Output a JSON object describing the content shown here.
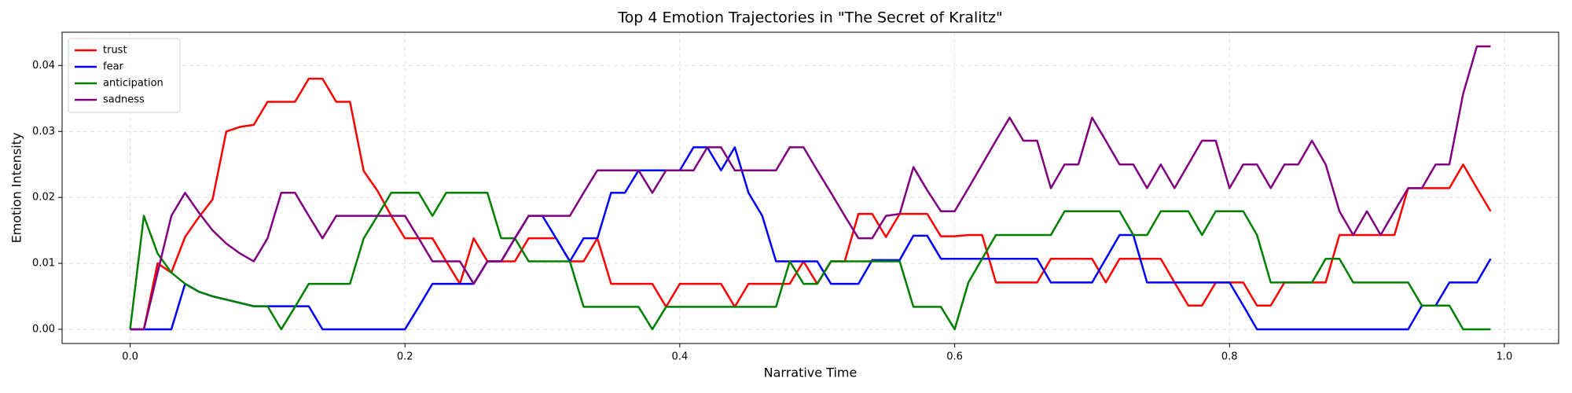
{
  "chart_data": {
    "type": "line",
    "title": "Top 4 Emotion Trajectories in \"The Secret of Kralitz\"",
    "xlabel": "Narrative Time",
    "ylabel": "Emotion Intensity",
    "x": [
      0,
      0.01,
      0.02,
      0.03,
      0.04,
      0.05,
      0.06,
      0.07,
      0.08,
      0.09,
      0.1,
      0.11,
      0.12,
      0.13,
      0.14,
      0.15,
      0.16,
      0.17,
      0.18,
      0.19,
      0.2,
      0.21,
      0.22,
      0.23,
      0.24,
      0.25,
      0.26,
      0.27,
      0.28,
      0.29,
      0.3,
      0.31,
      0.32,
      0.33,
      0.34,
      0.35,
      0.36,
      0.37,
      0.38,
      0.39,
      0.4,
      0.41,
      0.42,
      0.43,
      0.44,
      0.45,
      0.46,
      0.47,
      0.48,
      0.49,
      0.5,
      0.51,
      0.52,
      0.53,
      0.54,
      0.55,
      0.56,
      0.57,
      0.58,
      0.59,
      0.6,
      0.61,
      0.62,
      0.63,
      0.64,
      0.65,
      0.66,
      0.67,
      0.68,
      0.69,
      0.7,
      0.71,
      0.72,
      0.73,
      0.74,
      0.75,
      0.76,
      0.77,
      0.78,
      0.79,
      0.8,
      0.81,
      0.82,
      0.83,
      0.84,
      0.85,
      0.86,
      0.87,
      0.88,
      0.89,
      0.9,
      0.91,
      0.92,
      0.93,
      0.94,
      0.95,
      0.96,
      0.97,
      0.98,
      0.99
    ],
    "series": [
      {
        "name": "trust",
        "color": "#ff0000",
        "values": [
          0,
          0,
          0.01,
          0.0086,
          0.014,
          0.017,
          0.0197,
          0.03,
          0.0307,
          0.031,
          0.0345,
          0.0345,
          0.0345,
          0.038,
          0.038,
          0.0345,
          0.0345,
          0.024,
          0.021,
          0.0172,
          0.0138,
          0.0138,
          0.0138,
          0.0103,
          0.0069,
          0.0138,
          0.0103,
          0.0103,
          0.0103,
          0.0138,
          0.0138,
          0.0138,
          0.0103,
          0.0103,
          0.0138,
          0.0069,
          0.0069,
          0.0069,
          0.0069,
          0.0034,
          0.0069,
          0.0069,
          0.0069,
          0.0069,
          0.0034,
          0.0069,
          0.0069,
          0.0069,
          0.0069,
          0.0103,
          0.0069,
          0.0103,
          0.0103,
          0.0175,
          0.0175,
          0.014,
          0.0175,
          0.0175,
          0.0175,
          0.0141,
          0.0141,
          0.0143,
          0.0143,
          0.0071,
          0.0071,
          0.0071,
          0.0071,
          0.0107,
          0.0107,
          0.0107,
          0.0107,
          0.0071,
          0.0107,
          0.0107,
          0.0107,
          0.0107,
          0.0071,
          0.0036,
          0.0036,
          0.0071,
          0.0071,
          0.0071,
          0.0036,
          0.0036,
          0.0071,
          0.0071,
          0.0071,
          0.0071,
          0.0143,
          0.0143,
          0.0143,
          0.0143,
          0.0143,
          0.0214,
          0.0214,
          0.0214,
          0.0214,
          0.025,
          0.0214,
          0.0179
        ]
      },
      {
        "name": "fear",
        "color": "#0000ff",
        "values": [
          0,
          0,
          0,
          0,
          0.0069,
          0.0057,
          0.005,
          0.0045,
          0.004,
          0.0035,
          0.0035,
          0.0035,
          0.0035,
          0.0035,
          0,
          0,
          0,
          0,
          0,
          0,
          0,
          0.0034,
          0.0069,
          0.0069,
          0.0069,
          0.0069,
          0.0103,
          0.0103,
          0.0138,
          0.0172,
          0.0172,
          0.0138,
          0.0103,
          0.0138,
          0.0138,
          0.0207,
          0.0207,
          0.0241,
          0.0241,
          0.0241,
          0.0241,
          0.0276,
          0.0276,
          0.0241,
          0.0276,
          0.0207,
          0.0172,
          0.0103,
          0.0103,
          0.0103,
          0.0103,
          0.0069,
          0.0069,
          0.0069,
          0.0105,
          0.0105,
          0.0105,
          0.0142,
          0.0142,
          0.0107,
          0.0107,
          0.0107,
          0.0107,
          0.0107,
          0.0107,
          0.0107,
          0.0107,
          0.0071,
          0.0071,
          0.0071,
          0.0071,
          0.0107,
          0.0143,
          0.0143,
          0.0071,
          0.0071,
          0.0071,
          0.0071,
          0.0071,
          0.0071,
          0.0071,
          0.0036,
          0,
          0,
          0,
          0,
          0,
          0,
          0,
          0,
          0,
          0,
          0,
          0,
          0.0036,
          0.0036,
          0.0071,
          0.0071,
          0.0071,
          0.0107
        ]
      },
      {
        "name": "anticipation",
        "color": "#008000",
        "values": [
          0,
          0.0172,
          0.0115,
          0.0086,
          0.0069,
          0.0057,
          0.005,
          0.0045,
          0.004,
          0.0035,
          0.0035,
          0,
          0.0034,
          0.0069,
          0.0069,
          0.0069,
          0.0069,
          0.0138,
          0.0172,
          0.0207,
          0.0207,
          0.0207,
          0.0172,
          0.0207,
          0.0207,
          0.0207,
          0.0207,
          0.0138,
          0.0138,
          0.0103,
          0.0103,
          0.0103,
          0.0103,
          0.0034,
          0.0034,
          0.0034,
          0.0034,
          0.0034,
          0,
          0.0034,
          0.0034,
          0.0034,
          0.0034,
          0.0034,
          0.0034,
          0.0034,
          0.0034,
          0.0034,
          0.0103,
          0.0069,
          0.0069,
          0.0103,
          0.0103,
          0.0103,
          0.0103,
          0.0103,
          0.0103,
          0.0034,
          0.0034,
          0.0034,
          0,
          0.0071,
          0.0107,
          0.0143,
          0.0143,
          0.0143,
          0.0143,
          0.0143,
          0.0179,
          0.0179,
          0.0179,
          0.0179,
          0.0179,
          0.0143,
          0.0143,
          0.0179,
          0.0179,
          0.0179,
          0.0143,
          0.0179,
          0.0179,
          0.0179,
          0.0143,
          0.0071,
          0.0071,
          0.0071,
          0.0071,
          0.0107,
          0.0107,
          0.0071,
          0.0071,
          0.0071,
          0.0071,
          0.0071,
          0.0036,
          0.0036,
          0.0036,
          0,
          0,
          0
        ]
      },
      {
        "name": "sadness",
        "color": "#800080",
        "values": [
          0,
          0,
          0.0086,
          0.0172,
          0.0207,
          0.0177,
          0.015,
          0.013,
          0.0115,
          0.0103,
          0.0138,
          0.0207,
          0.0207,
          0.0172,
          0.0138,
          0.0172,
          0.0172,
          0.0172,
          0.0172,
          0.0172,
          0.0172,
          0.0138,
          0.0103,
          0.0103,
          0.0103,
          0.0069,
          0.0103,
          0.0103,
          0.0138,
          0.0172,
          0.0172,
          0.0172,
          0.0172,
          0.0207,
          0.0241,
          0.0241,
          0.0241,
          0.0241,
          0.0207,
          0.0241,
          0.0241,
          0.0241,
          0.0276,
          0.0276,
          0.0241,
          0.0241,
          0.0241,
          0.0241,
          0.0276,
          0.0276,
          0.0241,
          0.0207,
          0.0172,
          0.0138,
          0.0138,
          0.0172,
          0.0175,
          0.0246,
          0.0211,
          0.0179,
          0.0179,
          0.0214,
          0.025,
          0.0286,
          0.0321,
          0.0286,
          0.0286,
          0.0214,
          0.025,
          0.025,
          0.0321,
          0.0286,
          0.025,
          0.025,
          0.0214,
          0.025,
          0.0214,
          0.025,
          0.0286,
          0.0286,
          0.0214,
          0.025,
          0.025,
          0.0214,
          0.025,
          0.025,
          0.0286,
          0.025,
          0.0179,
          0.0143,
          0.0179,
          0.0143,
          0.0179,
          0.0214,
          0.0214,
          0.025,
          0.025,
          0.0357,
          0.0429,
          0.0429
        ]
      }
    ],
    "xlim": [
      -0.0495,
      1.0395
    ],
    "ylim": [
      -0.00215,
      0.04505
    ],
    "xticks": [
      {
        "value": 0,
        "label": "0.0"
      },
      0.2,
      0.4,
      0.6,
      0.8,
      {
        "value": 1,
        "label": "1.0"
      }
    ],
    "yticks": [
      {
        "value": 0,
        "label": "0.00"
      },
      {
        "value": 0.01,
        "label": "0.01"
      },
      {
        "value": 0.02,
        "label": "0.02"
      },
      {
        "value": 0.03,
        "label": "0.03"
      },
      {
        "value": 0.04,
        "label": "0.04"
      }
    ],
    "grid": true,
    "legend": "upper left"
  }
}
